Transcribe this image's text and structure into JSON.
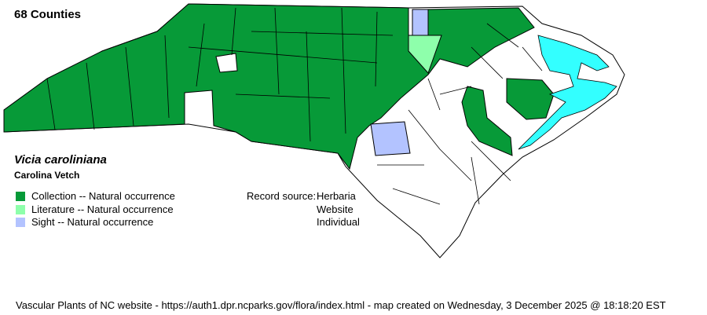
{
  "header": {
    "county_count": "68 Counties"
  },
  "species": {
    "scientific_name": "Vicia caroliniana",
    "common_name": "Carolina Vetch"
  },
  "legend": [
    {
      "label": "Collection -- Natural occurrence",
      "color": "#079a38"
    },
    {
      "label": "Literature -- Natural occurrence",
      "color": "#8effab"
    },
    {
      "label": "Sight -- Natural occurrence",
      "color": "#b3c3ff"
    }
  ],
  "record_source": {
    "label": "Record source:",
    "sources": [
      "Herbaria",
      "Website",
      "Individual"
    ]
  },
  "map": {
    "water_color": "#33ffff",
    "absent_color": "#ffffff"
  },
  "footer": "Vascular Plants of NC website - https://auth1.dpr.ncparks.gov/flora/index.html - map created on Wednesday, 3 December 2025 @ 18:18:20 EST"
}
